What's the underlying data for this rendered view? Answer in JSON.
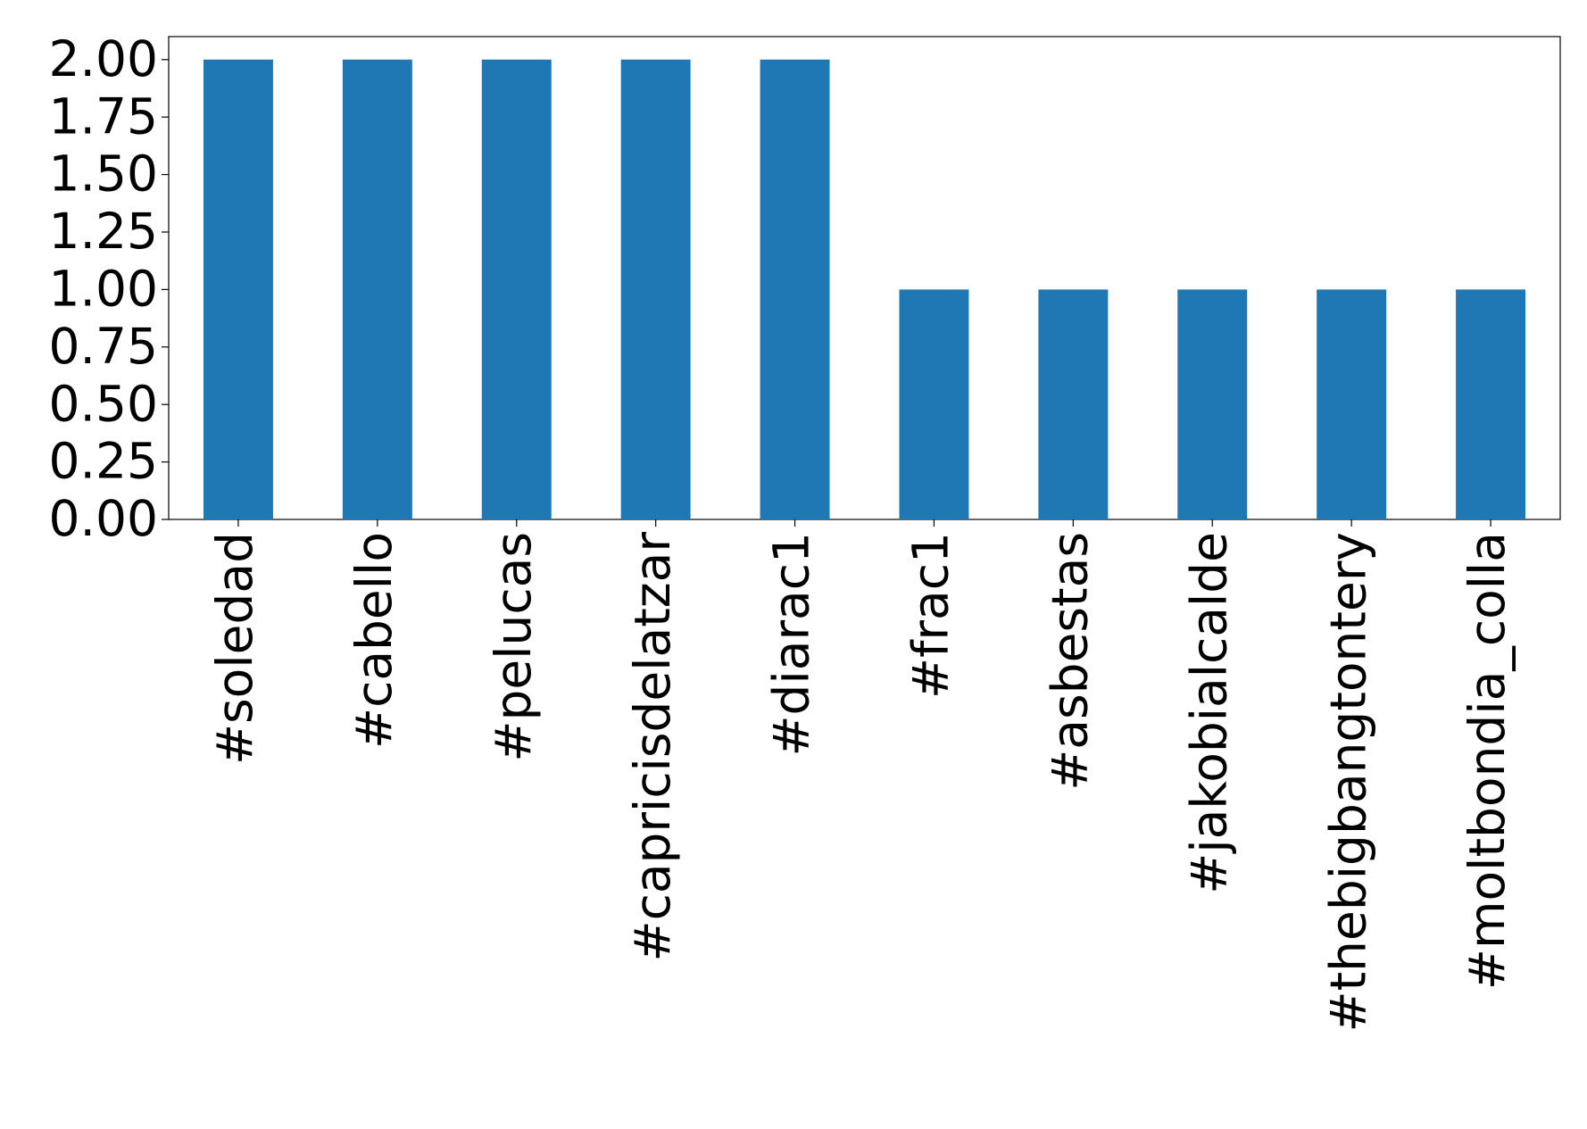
{
  "chart_data": {
    "type": "bar",
    "categories": [
      "#soledad",
      "#cabello",
      "#pelucas",
      "#capricisdelatzar",
      "#diarac1",
      "#frac1",
      "#asbestas",
      "#jakobialcalde",
      "#thebigbangtontery",
      "#moltbondia_colla"
    ],
    "values": [
      2,
      2,
      2,
      2,
      2,
      1,
      1,
      1,
      1,
      1
    ],
    "color": "#1f77b4",
    "ylim": [
      0,
      2.1
    ],
    "yticks": [
      {
        "value": 0,
        "label": "0.00"
      },
      0.25,
      {
        "value": 0.5,
        "label": "0.50"
      },
      0.75,
      {
        "value": 1,
        "label": "1.00"
      },
      1.25,
      {
        "value": 1.5,
        "label": "1.50"
      },
      1.75,
      {
        "value": 2,
        "label": "2.00"
      }
    ],
    "grid": false
  }
}
